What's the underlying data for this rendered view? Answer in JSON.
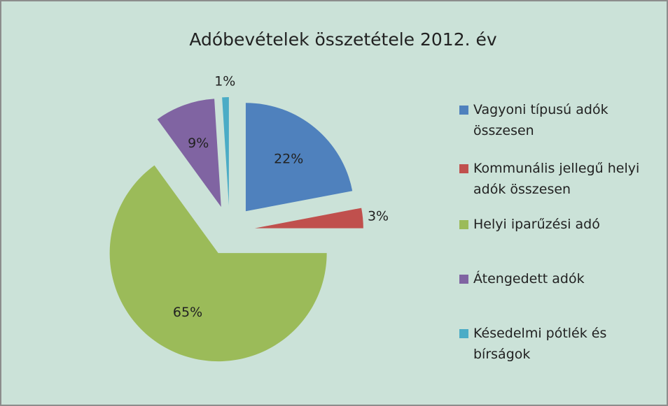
{
  "chart_data": {
    "type": "pie",
    "title": "Adóbevételek összetétele 2012. év",
    "categories": [
      "Vagyoni típusú adók összesen",
      "Kommunális jellegű helyi adók összesen",
      "Helyi iparűzési adó",
      "Átengedett adók",
      "Késedelmi pótlék és bírságok"
    ],
    "values": [
      22,
      3,
      65,
      9,
      1
    ],
    "value_labels": [
      "22%",
      "3%",
      "65%",
      "9%",
      "1%"
    ],
    "colors": [
      "#4f81bd",
      "#c0504d",
      "#9bbb59",
      "#8064a2",
      "#4bacc6"
    ],
    "legend": "right",
    "exploded": true
  }
}
